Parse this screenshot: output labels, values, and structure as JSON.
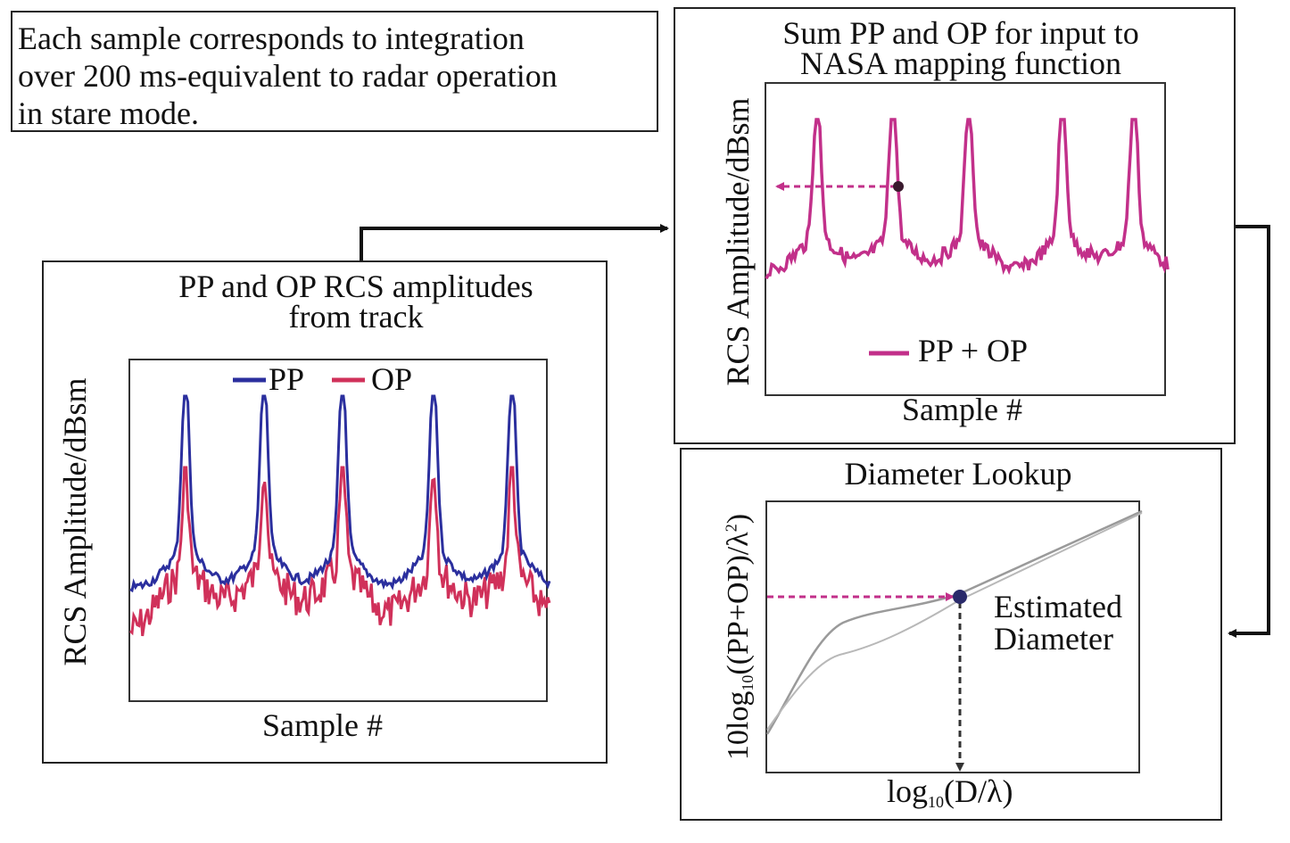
{
  "note": {
    "text": "Each sample corresponds to integration\nover 200 ms-equivalent to radar operation\nin stare mode."
  },
  "panel_track": {
    "title": "PP and OP RCS amplitudes\nfrom track",
    "xlabel": "Sample #",
    "ylabel": "RCS Amplitude/dBsm",
    "legend": [
      "PP",
      "OP"
    ]
  },
  "panel_sum": {
    "title": "Sum PP and OP for input to\nNASA mapping function",
    "xlabel": "Sample #",
    "ylabel": "RCS Amplitude/dBsm",
    "legend": [
      "PP + OP"
    ]
  },
  "panel_lookup": {
    "title": "Diameter Lookup",
    "ylabel_prefix": "10log",
    "ylabel_sub": "10",
    "ylabel_suffix": "((PP+OP)/λ",
    "ylabel_sup": "2",
    "ylabel_end": ")",
    "xlabel_prefix": "log",
    "xlabel_sub": "10",
    "xlabel_suffix": "(D/λ)",
    "annotation": "Estimated\nDiameter"
  },
  "colors": {
    "pp": "#2b2f9e",
    "op": "#d0315a",
    "sum": "#c2308a",
    "curve": "#9a9a9a",
    "arrow": "#111111"
  }
}
